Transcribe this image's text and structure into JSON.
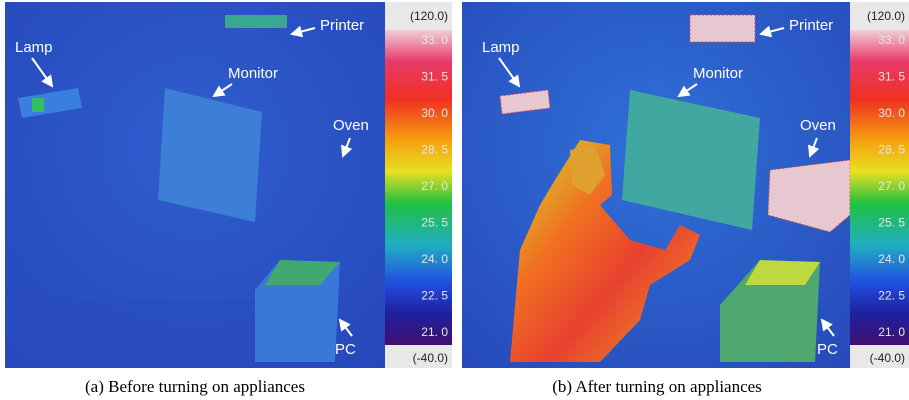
{
  "panels": [
    {
      "labels": {
        "lamp": "Lamp",
        "printer": "Printer",
        "monitor": "Monitor",
        "oven": "Oven",
        "pc": "PC"
      },
      "scale": {
        "top": "(120.0)",
        "ticks": [
          "33. 0",
          "31. 5",
          "30. 0",
          "28. 5",
          "27. 0",
          "25. 5",
          "24. 0",
          "22. 5",
          "21. 0"
        ],
        "bottom": "(-40.0)"
      },
      "caption": "(a)  Before turning on appliances"
    },
    {
      "labels": {
        "lamp": "Lamp",
        "printer": "Printer",
        "monitor": "Monitor",
        "oven": "Oven",
        "pc": "PC"
      },
      "scale": {
        "top": "(120.0)",
        "ticks": [
          "33. 0",
          "31. 5",
          "30. 0",
          "28. 5",
          "27. 0",
          "25. 5",
          "24. 0",
          "22. 5",
          "21. 0"
        ],
        "bottom": "(-40.0)"
      },
      "caption": "(b) After turning on appliances"
    }
  ]
}
